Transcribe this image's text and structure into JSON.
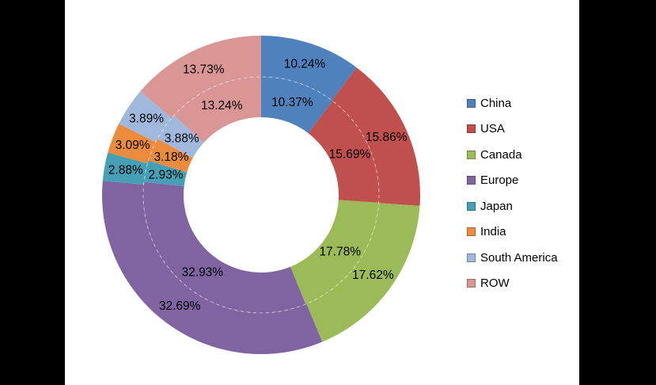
{
  "page": {
    "background_color": "#000000",
    "canvas_background": "#ffffff"
  },
  "chart_data": {
    "type": "pie",
    "subtype": "double-ring-donut",
    "title": "",
    "categories": [
      "China",
      "USA",
      "Canada",
      "Europe",
      "Japan",
      "India",
      "South America",
      "ROW"
    ],
    "colors": [
      "#4f81bd",
      "#c0504d",
      "#9bbb59",
      "#8064a2",
      "#45a0b6",
      "#ea8b3d",
      "#a0b8dc",
      "#d99694"
    ],
    "series": [
      {
        "name": "inner-ring",
        "values": [
          10.37,
          15.69,
          17.78,
          32.93,
          2.93,
          3.18,
          3.88,
          13.24
        ]
      },
      {
        "name": "outer-ring",
        "values": [
          10.24,
          15.86,
          17.62,
          32.69,
          2.88,
          3.09,
          3.89,
          13.73
        ]
      }
    ],
    "data_labels": {
      "inner": [
        "10.37%",
        "15.69%",
        "17.78%",
        "32.93%",
        "2.93%",
        "3.18%",
        "3.88%",
        "13.24%"
      ],
      "outer": [
        "10.24%",
        "15.86%",
        "17.62%",
        "32.69%",
        "2.88%",
        "3.09%",
        "3.89%",
        "13.73%"
      ]
    },
    "label_color": "#000000",
    "start_angle_deg": 0,
    "direction": "clockwise",
    "legend_position": "right",
    "separator_ring": {
      "style": "dashed",
      "color": "rgba(255,255,255,0.55)"
    }
  },
  "legend": {
    "items": [
      {
        "label": "China",
        "color": "#4f81bd"
      },
      {
        "label": "USA",
        "color": "#c0504d"
      },
      {
        "label": "Canada",
        "color": "#9bbb59"
      },
      {
        "label": "Europe",
        "color": "#8064a2"
      },
      {
        "label": "Japan",
        "color": "#45a0b6"
      },
      {
        "label": "India",
        "color": "#ea8b3d"
      },
      {
        "label": "South America",
        "color": "#a0b8dc"
      },
      {
        "label": "ROW",
        "color": "#d99694"
      }
    ]
  }
}
